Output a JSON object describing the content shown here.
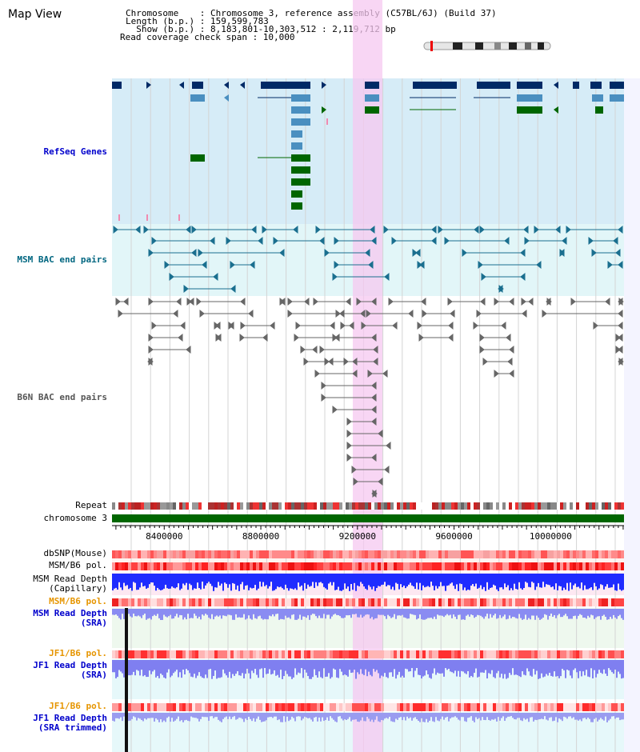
{
  "page": {
    "title": "Map View"
  },
  "info": {
    "line1": "Chromosome    : Chromosome 3, reference assembly (C57BL/6J) (Build 37)",
    "line2": "Length (b.p.) : 159,599,783",
    "line3": "  Show (b.p.) : 8,183,801-10,303,512 : 2,119,712 bp",
    "line4": "Read coverage check span : 10,000"
  },
  "tracks": {
    "refseq": "RefSeq Genes",
    "msm_bac": "MSM BAC end pairs",
    "b6n_bac": "B6N BAC end pairs",
    "repeat": "Repeat",
    "chromosome": "chromosome 3",
    "dbsnp": "dbSNP(Mouse)",
    "msm_pol": "MSM/B6 pol.",
    "msm_depth_cap": "MSM Read Depth\n(Capillary)",
    "msm_pol2": "MSM/B6 pol.",
    "msm_depth_sra": "MSM Read Depth\n(SRA)",
    "jf1_pol": "JF1/B6 pol.",
    "jf1_depth_sra": "JF1 Read Depth\n(SRA)",
    "jf1_pol2": "JF1/B6 pol.",
    "jf1_depth_trim": "JF1 Read Depth\n(SRA trimmed)"
  },
  "axis": {
    "ticks": [
      {
        "value": 8400000,
        "label": "8400000"
      },
      {
        "value": 8800000,
        "label": "8800000"
      },
      {
        "value": 9200000,
        "label": "9200000"
      },
      {
        "value": 9600000,
        "label": "9600000"
      },
      {
        "value": 10000000,
        "label": "10000000"
      }
    ]
  },
  "colors": {
    "refseq_label": "#0000cc",
    "msm_label": "#006680",
    "b6n_label": "#555555",
    "pol_orange": "#e69500",
    "depth_blue": "#0000cc",
    "highlight": "#f5c8f0",
    "gene_dark": "#002a66",
    "gene_mid": "#4a8fc0",
    "gene_green": "#006600"
  }
}
